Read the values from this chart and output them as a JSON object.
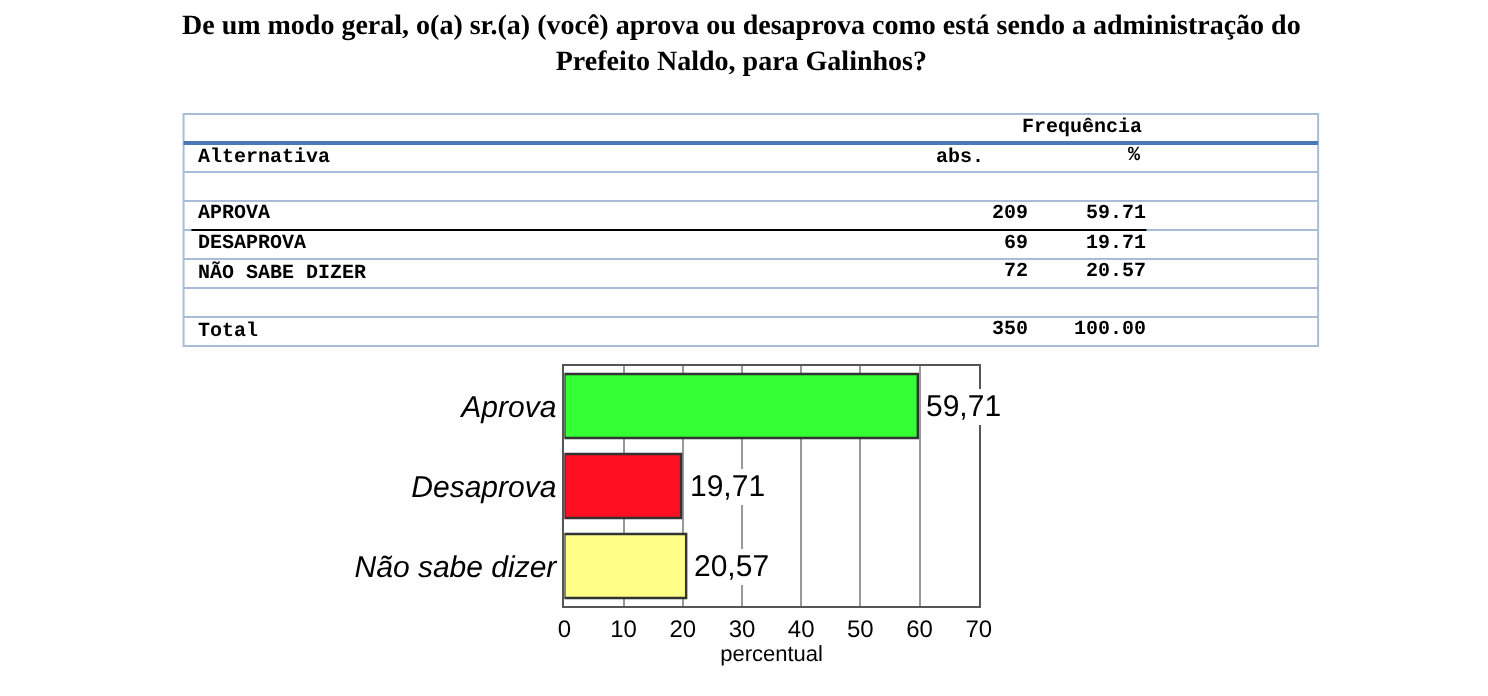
{
  "chart_data": [
    {
      "type": "other",
      "title": "De um modo geral, o(a) sr.(a) (você) aprova ou desaprova como está sendo a administração do\nPrefeito Naldo, para Galinhos?",
      "annotations": [
        "Frequência",
        "Alternativa",
        "Total",
        "350",
        "100.00"
      ],
      "categories": [
        "APROVA",
        "DESAPROVA",
        "NÃO SABE DIZER"
      ],
      "series": [
        {
          "name": "abs.",
          "values": [
            209,
            69,
            72
          ]
        },
        {
          "name": "%",
          "values": [
            59.71,
            19.71,
            20.57
          ]
        }
      ],
      "data_labels": true
    },
    {
      "type": "bar",
      "orientation": "horizontal",
      "categories": [
        "Aprova",
        "Desaprova",
        "Não sabe dizer"
      ],
      "values": [
        59.71,
        19.71,
        20.57
      ],
      "colors": [
        "#33ff33",
        "#ff1020",
        "#ffff88"
      ],
      "value_labels": [
        "59,71",
        "19,71",
        "20,57"
      ],
      "xlabel": "percentual",
      "xlim": [
        0,
        70
      ],
      "xticks": [
        0,
        10,
        20,
        30,
        40,
        50,
        60,
        70
      ],
      "grid": "x"
    }
  ]
}
